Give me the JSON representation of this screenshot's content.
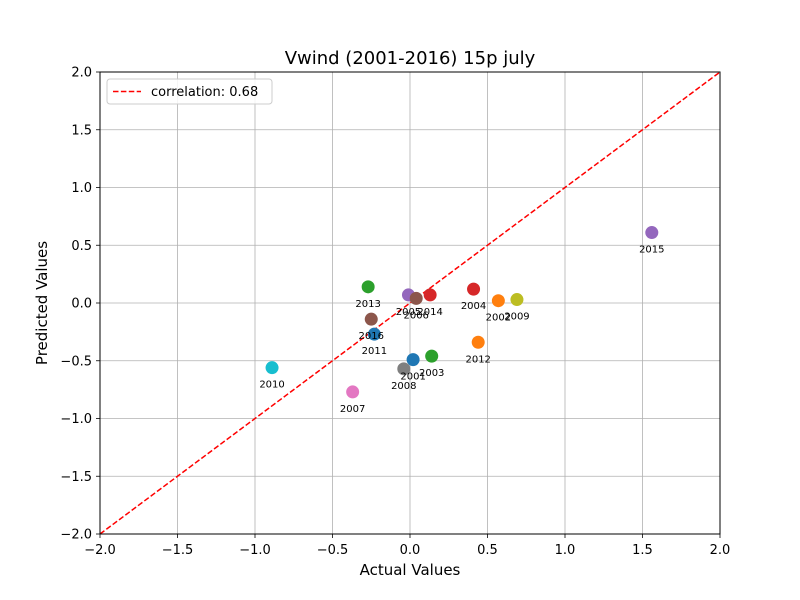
{
  "chart_data": {
    "type": "scatter",
    "title": "Vwind (2001-2016) 15p july",
    "xlabel": "Actual Values",
    "ylabel": "Predicted Values",
    "xlim": [
      -2.0,
      2.0
    ],
    "ylim": [
      -2.0,
      2.0
    ],
    "x_ticks": [
      "−2.0",
      "−1.5",
      "−1.0",
      "−0.5",
      "0.0",
      "0.5",
      "1.0",
      "1.5",
      "2.0"
    ],
    "y_ticks": [
      "−2.0",
      "−1.5",
      "−1.0",
      "−0.5",
      "0.0",
      "0.5",
      "1.0",
      "1.5",
      "2.0"
    ],
    "grid": true,
    "legend": {
      "placement": "top-left",
      "entries": [
        "correlation: 0.68"
      ]
    },
    "reference_line": {
      "style": "dashed",
      "color": "#ff0000",
      "from": [
        -2.0,
        -2.0
      ],
      "to": [
        2.0,
        2.0
      ]
    },
    "points": [
      {
        "label": "2001",
        "x": 0.02,
        "y": -0.49,
        "color": "#1f77b4"
      },
      {
        "label": "2002",
        "x": 0.57,
        "y": 0.02,
        "color": "#ff7f0e"
      },
      {
        "label": "2003",
        "x": 0.14,
        "y": -0.46,
        "color": "#2ca02c"
      },
      {
        "label": "2004",
        "x": 0.41,
        "y": 0.12,
        "color": "#d62728"
      },
      {
        "label": "2005",
        "x": -0.01,
        "y": 0.07,
        "color": "#9467bd"
      },
      {
        "label": "2006",
        "x": 0.04,
        "y": 0.04,
        "color": "#8c564b"
      },
      {
        "label": "2007",
        "x": -0.37,
        "y": -0.77,
        "color": "#e377c2"
      },
      {
        "label": "2008",
        "x": -0.04,
        "y": -0.57,
        "color": "#7f7f7f"
      },
      {
        "label": "2009",
        "x": 0.69,
        "y": 0.03,
        "color": "#bcbd22"
      },
      {
        "label": "2010",
        "x": -0.89,
        "y": -0.56,
        "color": "#17becf"
      },
      {
        "label": "2011",
        "x": -0.23,
        "y": -0.27,
        "color": "#1f77b4"
      },
      {
        "label": "2012",
        "x": 0.44,
        "y": -0.34,
        "color": "#ff7f0e"
      },
      {
        "label": "2013",
        "x": -0.27,
        "y": 0.14,
        "color": "#2ca02c"
      },
      {
        "label": "2014",
        "x": 0.13,
        "y": 0.07,
        "color": "#d62728"
      },
      {
        "label": "2015",
        "x": 1.56,
        "y": 0.61,
        "color": "#9467bd"
      },
      {
        "label": "2016",
        "x": -0.25,
        "y": -0.14,
        "color": "#8c564b"
      }
    ]
  }
}
